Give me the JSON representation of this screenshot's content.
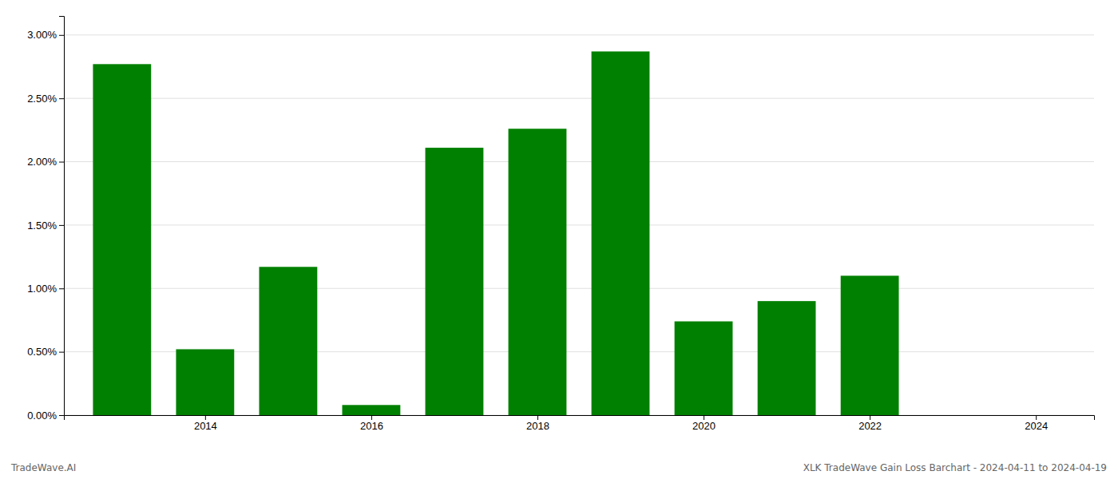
{
  "chart_data": {
    "type": "bar",
    "x": [
      2013,
      2014,
      2015,
      2016,
      2017,
      2018,
      2019,
      2020,
      2021,
      2022,
      2023
    ],
    "values": [
      0.0277,
      0.0052,
      0.0117,
      0.0008,
      0.0211,
      0.0226,
      0.0287,
      0.0074,
      0.009,
      0.011,
      0.0
    ],
    "color": "#008000",
    "xlim": [
      2012.3,
      2024.7
    ],
    "xticks": [
      2014,
      2016,
      2018,
      2020,
      2022,
      2024
    ],
    "ylim": [
      0,
      0.0315
    ],
    "yticks": [
      {
        "value": 0.0,
        "label": "0.00%"
      },
      {
        "value": 0.005,
        "label": "0.50%"
      },
      {
        "value": 0.01,
        "label": "1.00%"
      },
      {
        "value": 0.015,
        "label": "1.50%"
      },
      {
        "value": 0.02,
        "label": "2.00%"
      },
      {
        "value": 0.025,
        "label": "2.50%"
      },
      {
        "value": 0.03,
        "label": "3.00%"
      }
    ],
    "grid": true,
    "annotations": [
      "TradeWave.AI",
      "XLK TradeWave Gain Loss Barchart - 2024-04-11 to 2024-04-19"
    ]
  }
}
